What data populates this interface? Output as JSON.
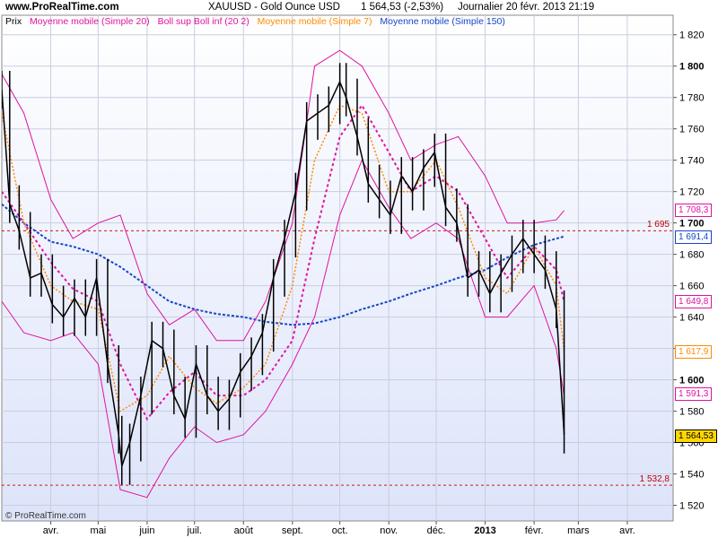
{
  "header": {
    "site": "www.ProRealTime.com",
    "title": "XAUUSD - Gold Ounce USD",
    "price": "1 564,53 (-2,53%)",
    "period": "Journalier  20 févr. 2013 21:19"
  },
  "legend": [
    {
      "label": "Prix",
      "color": "#000000"
    },
    {
      "label": "Moyenne mobile (Simple 20)",
      "color": "#e0129e"
    },
    {
      "label": "Boll sup Boll inf (20 2)",
      "color": "#e0129e"
    },
    {
      "label": "Moyenne mobile (Simple 7)",
      "color": "#ff8a00"
    },
    {
      "label": "Moyenne mobile (Simple 150)",
      "color": "#1546c8"
    }
  ],
  "copyright": "© ProRealTime.com",
  "colors": {
    "price": "#000000",
    "sma20": "#e0129e",
    "bollinger": "#e0129e",
    "sma7": "#ff8a00",
    "sma150": "#1546c8",
    "hline": "#d01818",
    "background_top": "#ffffff",
    "background_bottom": "#dde4fa"
  },
  "badges": [
    {
      "text": "1 708,3",
      "value": 1708.3,
      "color": "#e0129e"
    },
    {
      "text": "1 691,4",
      "value": 1691.4,
      "color": "#1546c8"
    },
    {
      "text": "1 649,8",
      "value": 1649.8,
      "color": "#e0129e"
    },
    {
      "text": "1 617,9",
      "value": 1617.9,
      "color": "#ff8a00"
    },
    {
      "text": "1 591,3",
      "value": 1591.3,
      "color": "#e0129e"
    },
    {
      "text": "1 564,53",
      "value": 1564.53,
      "color": "#000000",
      "fill": "#ffd700"
    }
  ],
  "chart_data": {
    "type": "line",
    "subtype": "candlestick-with-indicators",
    "title": "XAUUSD - Gold Ounce USD",
    "ylim": [
      1510,
      1825
    ],
    "y_ticks": [
      {
        "value": 1520,
        "label": "1 520"
      },
      {
        "value": 1540,
        "label": "1 540"
      },
      {
        "value": 1560,
        "label": "1 560"
      },
      {
        "value": 1580,
        "label": "1 580"
      },
      {
        "value": 1600,
        "label": "1 600",
        "bold": true
      },
      {
        "value": 1620,
        "label": "1 620"
      },
      {
        "value": 1640,
        "label": "1 640"
      },
      {
        "value": 1660,
        "label": "1 660"
      },
      {
        "value": 1680,
        "label": "1 680"
      },
      {
        "value": 1700,
        "label": "1 700",
        "bold": true
      },
      {
        "value": 1720,
        "label": "1 720"
      },
      {
        "value": 1740,
        "label": "1 740"
      },
      {
        "value": 1760,
        "label": "1 760"
      },
      {
        "value": 1780,
        "label": "1 780"
      },
      {
        "value": 1800,
        "label": "1 800",
        "bold": true
      },
      {
        "value": 1820,
        "label": "1 820"
      }
    ],
    "x_range": [
      "2012-03-01",
      "2013-04-30"
    ],
    "x_ticks": [
      {
        "date": "2012-04-01",
        "label": "avr."
      },
      {
        "date": "2012-05-01",
        "label": "mai"
      },
      {
        "date": "2012-06-01",
        "label": "juin"
      },
      {
        "date": "2012-07-01",
        "label": "juil."
      },
      {
        "date": "2012-08-01",
        "label": "août"
      },
      {
        "date": "2012-09-01",
        "label": "sept."
      },
      {
        "date": "2012-10-01",
        "label": "oct."
      },
      {
        "date": "2012-11-01",
        "label": "nov."
      },
      {
        "date": "2012-12-01",
        "label": "déc."
      },
      {
        "date": "2013-01-01",
        "label": "2013",
        "bold": true
      },
      {
        "date": "2013-02-01",
        "label": "févr."
      },
      {
        "date": "2013-03-01",
        "label": "mars"
      },
      {
        "date": "2013-04-01",
        "label": "avr."
      }
    ],
    "horizontal_lines": [
      {
        "value": 1695,
        "label": "1 695"
      },
      {
        "value": 1532.8,
        "label": "1 532,8"
      }
    ],
    "grid": true,
    "series": [
      {
        "name": "Prix",
        "x": [
          "2012-03-01",
          "2012-03-06",
          "2012-03-12",
          "2012-03-19",
          "2012-03-26",
          "2012-04-02",
          "2012-04-09",
          "2012-04-16",
          "2012-04-23",
          "2012-04-30",
          "2012-05-07",
          "2012-05-14",
          "2012-05-16",
          "2012-05-21",
          "2012-05-28",
          "2012-06-04",
          "2012-06-11",
          "2012-06-18",
          "2012-06-25",
          "2012-07-02",
          "2012-07-09",
          "2012-07-16",
          "2012-07-23",
          "2012-07-30",
          "2012-08-06",
          "2012-08-13",
          "2012-08-20",
          "2012-08-27",
          "2012-09-03",
          "2012-09-10",
          "2012-09-17",
          "2012-09-24",
          "2012-10-01",
          "2012-10-05",
          "2012-10-12",
          "2012-10-19",
          "2012-10-26",
          "2012-11-02",
          "2012-11-09",
          "2012-11-16",
          "2012-11-23",
          "2012-11-30",
          "2012-12-07",
          "2012-12-14",
          "2012-12-21",
          "2012-12-28",
          "2013-01-04",
          "2013-01-11",
          "2013-01-18",
          "2013-01-25",
          "2013-02-01",
          "2013-02-08",
          "2013-02-15",
          "2013-02-20"
        ],
        "values": [
          1785,
          1712,
          1695,
          1665,
          1668,
          1648,
          1640,
          1652,
          1640,
          1665,
          1610,
          1565,
          1545,
          1560,
          1590,
          1625,
          1620,
          1590,
          1575,
          1610,
          1590,
          1580,
          1588,
          1605,
          1615,
          1630,
          1665,
          1690,
          1720,
          1765,
          1770,
          1775,
          1790,
          1780,
          1755,
          1725,
          1715,
          1705,
          1730,
          1720,
          1735,
          1745,
          1710,
          1700,
          1665,
          1670,
          1655,
          1668,
          1680,
          1690,
          1680,
          1670,
          1645,
          1565
        ]
      },
      {
        "name": "Moyenne mobile (Simple 7)",
        "x": [
          "2012-03-01",
          "2012-03-15",
          "2012-04-01",
          "2012-04-15",
          "2012-05-01",
          "2012-05-15",
          "2012-06-01",
          "2012-06-15",
          "2012-07-01",
          "2012-07-15",
          "2012-08-01",
          "2012-08-15",
          "2012-09-01",
          "2012-09-15",
          "2012-10-01",
          "2012-10-15",
          "2012-11-01",
          "2012-11-15",
          "2012-12-01",
          "2012-12-15",
          "2013-01-01",
          "2013-01-15",
          "2013-02-01",
          "2013-02-15",
          "2013-02-20"
        ],
        "values": [
          1770,
          1700,
          1660,
          1650,
          1645,
          1580,
          1590,
          1615,
          1595,
          1585,
          1595,
          1610,
          1660,
          1740,
          1775,
          1770,
          1720,
          1720,
          1740,
          1710,
          1665,
          1655,
          1685,
          1660,
          1618
        ]
      },
      {
        "name": "Moyenne mobile (Simple 20)",
        "x": [
          "2012-03-01",
          "2012-03-15",
          "2012-04-01",
          "2012-04-15",
          "2012-05-01",
          "2012-05-15",
          "2012-06-01",
          "2012-06-15",
          "2012-07-01",
          "2012-07-15",
          "2012-08-01",
          "2012-08-15",
          "2012-09-01",
          "2012-09-15",
          "2012-10-01",
          "2012-10-15",
          "2012-11-01",
          "2012-11-15",
          "2012-12-01",
          "2012-12-15",
          "2013-01-01",
          "2013-01-15",
          "2013-02-01",
          "2013-02-15",
          "2013-02-20"
        ],
        "values": [
          1720,
          1700,
          1675,
          1658,
          1650,
          1610,
          1575,
          1592,
          1605,
          1590,
          1590,
          1600,
          1625,
          1690,
          1755,
          1775,
          1745,
          1720,
          1730,
          1720,
          1690,
          1665,
          1685,
          1670,
          1650
        ]
      },
      {
        "name": "Boll sup",
        "x": [
          "2012-03-01",
          "2012-03-15",
          "2012-04-01",
          "2012-04-15",
          "2012-05-01",
          "2012-05-15",
          "2012-06-01",
          "2012-06-15",
          "2012-07-01",
          "2012-07-15",
          "2012-08-01",
          "2012-08-15",
          "2012-09-01",
          "2012-09-15",
          "2012-10-01",
          "2012-10-15",
          "2012-11-01",
          "2012-11-15",
          "2012-12-01",
          "2012-12-15",
          "2013-01-01",
          "2013-01-15",
          "2013-02-01",
          "2013-02-15",
          "2013-02-20"
        ],
        "values": [
          1795,
          1770,
          1715,
          1690,
          1700,
          1705,
          1655,
          1635,
          1645,
          1625,
          1625,
          1650,
          1700,
          1800,
          1810,
          1800,
          1770,
          1740,
          1750,
          1755,
          1730,
          1700,
          1700,
          1702,
          1708
        ]
      },
      {
        "name": "Boll inf",
        "x": [
          "2012-03-01",
          "2012-03-15",
          "2012-04-01",
          "2012-04-15",
          "2012-05-01",
          "2012-05-15",
          "2012-06-01",
          "2012-06-15",
          "2012-07-01",
          "2012-07-15",
          "2012-08-01",
          "2012-08-15",
          "2012-09-01",
          "2012-09-15",
          "2012-10-01",
          "2012-10-15",
          "2012-11-01",
          "2012-11-15",
          "2012-12-01",
          "2012-12-15",
          "2013-01-01",
          "2013-01-15",
          "2013-02-01",
          "2013-02-15",
          "2013-02-20"
        ],
        "values": [
          1650,
          1630,
          1625,
          1630,
          1610,
          1530,
          1525,
          1550,
          1570,
          1560,
          1565,
          1580,
          1610,
          1640,
          1705,
          1740,
          1710,
          1690,
          1700,
          1690,
          1640,
          1640,
          1660,
          1620,
          1590
        ]
      },
      {
        "name": "Moyenne mobile (Simple 150)",
        "x": [
          "2012-03-01",
          "2012-03-15",
          "2012-04-01",
          "2012-04-15",
          "2012-05-01",
          "2012-05-15",
          "2012-06-01",
          "2012-06-15",
          "2012-07-01",
          "2012-07-15",
          "2012-08-01",
          "2012-08-15",
          "2012-09-01",
          "2012-09-15",
          "2012-10-01",
          "2012-10-15",
          "2012-11-01",
          "2012-11-15",
          "2012-12-01",
          "2012-12-15",
          "2013-01-01",
          "2013-01-15",
          "2013-02-01",
          "2013-02-15",
          "2013-02-20"
        ],
        "values": [
          1712,
          1700,
          1688,
          1685,
          1680,
          1672,
          1660,
          1650,
          1645,
          1642,
          1640,
          1637,
          1635,
          1636,
          1640,
          1645,
          1650,
          1655,
          1660,
          1665,
          1670,
          1678,
          1686,
          1690,
          1691.4
        ]
      }
    ]
  }
}
